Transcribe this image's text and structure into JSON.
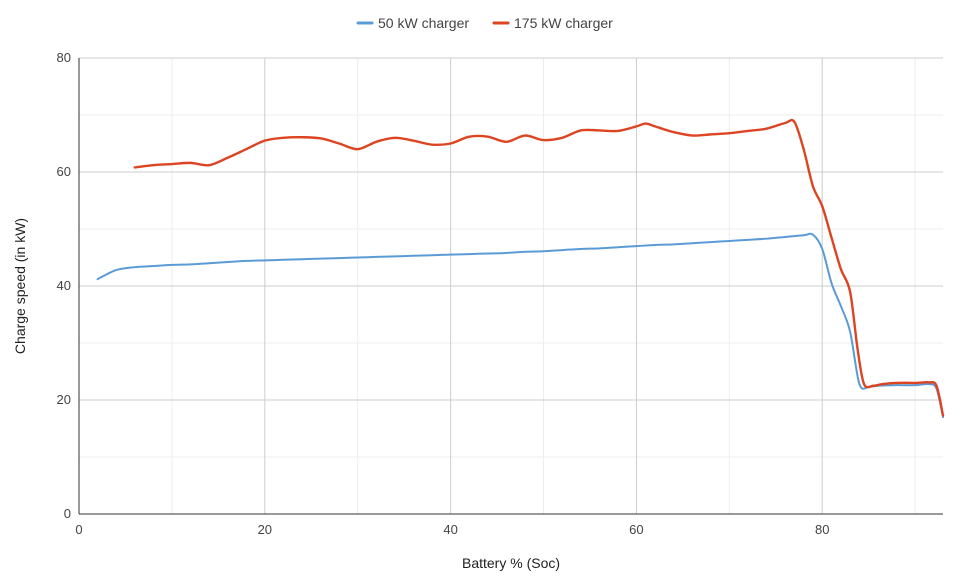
{
  "chart_data": {
    "type": "line",
    "title": "",
    "xlabel": "Battery % (Soc)",
    "ylabel": "Charge speed (in kW)",
    "xlim": [
      0,
      93
    ],
    "ylim": [
      0,
      80
    ],
    "x_ticks": [
      0,
      20,
      40,
      60,
      80
    ],
    "y_ticks": [
      0,
      20,
      40,
      60,
      80
    ],
    "x_minor_ticks": [
      10,
      30,
      50,
      70,
      90
    ],
    "y_minor_ticks": [
      10,
      30,
      50,
      70
    ],
    "grid": true,
    "legend_position": "top",
    "series": [
      {
        "name": "50 kW charger",
        "color": "#5b9bd5",
        "points": [
          [
            2,
            41.2
          ],
          [
            4,
            42.8
          ],
          [
            6,
            43.3
          ],
          [
            8,
            43.5
          ],
          [
            10,
            43.7
          ],
          [
            12,
            43.8
          ],
          [
            14,
            44.0
          ],
          [
            16,
            44.2
          ],
          [
            18,
            44.4
          ],
          [
            20,
            44.5
          ],
          [
            22,
            44.6
          ],
          [
            24,
            44.7
          ],
          [
            26,
            44.8
          ],
          [
            28,
            44.9
          ],
          [
            30,
            45.0
          ],
          [
            32,
            45.1
          ],
          [
            34,
            45.2
          ],
          [
            36,
            45.3
          ],
          [
            38,
            45.4
          ],
          [
            40,
            45.5
          ],
          [
            42,
            45.6
          ],
          [
            44,
            45.7
          ],
          [
            46,
            45.8
          ],
          [
            48,
            46.0
          ],
          [
            50,
            46.1
          ],
          [
            52,
            46.3
          ],
          [
            54,
            46.5
          ],
          [
            56,
            46.6
          ],
          [
            58,
            46.8
          ],
          [
            60,
            47.0
          ],
          [
            62,
            47.2
          ],
          [
            64,
            47.3
          ],
          [
            66,
            47.5
          ],
          [
            68,
            47.7
          ],
          [
            70,
            47.9
          ],
          [
            72,
            48.1
          ],
          [
            74,
            48.3
          ],
          [
            76,
            48.6
          ],
          [
            78,
            48.9
          ],
          [
            79,
            49.0
          ],
          [
            80,
            46.5
          ],
          [
            81,
            40.5
          ],
          [
            82,
            36.5
          ],
          [
            83,
            32.0
          ],
          [
            84,
            22.8
          ],
          [
            85,
            22.3
          ],
          [
            86,
            22.5
          ],
          [
            88,
            22.6
          ],
          [
            90,
            22.6
          ],
          [
            91.5,
            22.8
          ],
          [
            92.3,
            22.0
          ],
          [
            93,
            17.0
          ]
        ]
      },
      {
        "name": "175 kW charger",
        "color": "#dd4422",
        "points": [
          [
            6,
            60.8
          ],
          [
            8,
            61.2
          ],
          [
            10,
            61.4
          ],
          [
            12,
            61.6
          ],
          [
            14,
            61.2
          ],
          [
            16,
            62.5
          ],
          [
            18,
            64.0
          ],
          [
            20,
            65.5
          ],
          [
            22,
            66.0
          ],
          [
            24,
            66.1
          ],
          [
            26,
            65.9
          ],
          [
            28,
            65.0
          ],
          [
            30,
            64.0
          ],
          [
            32,
            65.3
          ],
          [
            34,
            66.0
          ],
          [
            36,
            65.5
          ],
          [
            38,
            64.8
          ],
          [
            40,
            65.0
          ],
          [
            42,
            66.2
          ],
          [
            44,
            66.2
          ],
          [
            46,
            65.3
          ],
          [
            48,
            66.4
          ],
          [
            50,
            65.6
          ],
          [
            52,
            66.0
          ],
          [
            54,
            67.3
          ],
          [
            56,
            67.3
          ],
          [
            58,
            67.2
          ],
          [
            60,
            68.0
          ],
          [
            61,
            68.5
          ],
          [
            62,
            68.0
          ],
          [
            64,
            67.0
          ],
          [
            66,
            66.4
          ],
          [
            68,
            66.6
          ],
          [
            70,
            66.8
          ],
          [
            72,
            67.2
          ],
          [
            74,
            67.6
          ],
          [
            76,
            68.6
          ],
          [
            77,
            68.8
          ],
          [
            78,
            64.0
          ],
          [
            79,
            57.5
          ],
          [
            80,
            54.0
          ],
          [
            81,
            48.5
          ],
          [
            82,
            43.0
          ],
          [
            83,
            39.0
          ],
          [
            83.8,
            29.0
          ],
          [
            84.5,
            22.8
          ],
          [
            85.5,
            22.5
          ],
          [
            86.5,
            22.8
          ],
          [
            88,
            23.0
          ],
          [
            90,
            23.0
          ],
          [
            91.5,
            23.1
          ],
          [
            92.3,
            22.5
          ],
          [
            93,
            17.3
          ]
        ]
      }
    ]
  }
}
